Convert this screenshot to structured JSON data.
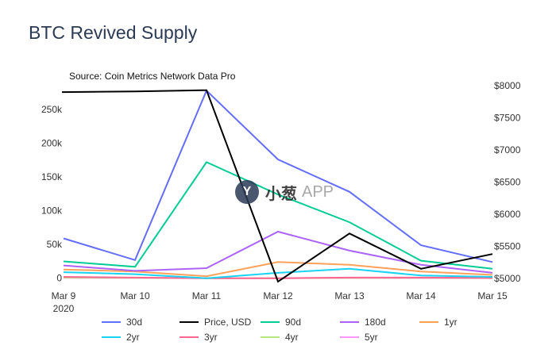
{
  "chart_data": {
    "type": "line",
    "title": "BTC Revived Supply",
    "source": "Source: Coin Metrics Network Data Pro",
    "categories": [
      "Mar 9",
      "Mar 10",
      "Mar 11",
      "Mar 12",
      "Mar 13",
      "Mar 14",
      "Mar 15"
    ],
    "x_tick_labels": [
      "Mar 9",
      "Mar 10",
      "Mar 11",
      "Mar 12",
      "Mar 13",
      "Mar 14",
      "Mar 15"
    ],
    "x_year_label": "2020",
    "y_left": {
      "ticks": [
        0,
        50000,
        100000,
        150000,
        200000,
        250000
      ],
      "tick_labels": [
        "0",
        "50k",
        "100k",
        "150k",
        "200k",
        "250k"
      ],
      "ylim": [
        -5000,
        290000
      ]
    },
    "y_right": {
      "ticks": [
        5000,
        5500,
        6000,
        6500,
        7000,
        7500,
        8000
      ],
      "tick_labels": [
        "$5000",
        "$5500",
        "$6000",
        "$6500",
        "$7000",
        "$7500",
        "$8000"
      ],
      "ylim": [
        4950,
        8050
      ]
    },
    "grid": false,
    "legend_position": "bottom",
    "series": [
      {
        "name": "30d",
        "axis": "left",
        "color": "#636efa",
        "values": [
          59000,
          27000,
          278000,
          176000,
          128000,
          49000,
          24000
        ]
      },
      {
        "name": "Price, USD",
        "axis": "right",
        "color": "#000000",
        "values": [
          7900,
          7910,
          7930,
          4950,
          5700,
          5150,
          5380
        ]
      },
      {
        "name": "90d",
        "axis": "left",
        "color": "#00cc96",
        "values": [
          25000,
          17000,
          172000,
          124000,
          83000,
          26000,
          14000
        ]
      },
      {
        "name": "180d",
        "axis": "left",
        "color": "#ab63fa",
        "values": [
          19000,
          11000,
          15000,
          69000,
          41000,
          20000,
          8000
        ]
      },
      {
        "name": "1yr",
        "axis": "left",
        "color": "#ffa15a",
        "values": [
          13000,
          10000,
          3000,
          24000,
          20000,
          10000,
          5000
        ]
      },
      {
        "name": "2yr",
        "axis": "left",
        "color": "#19d3f3",
        "values": [
          9000,
          6000,
          0,
          8000,
          14000,
          4000,
          2000
        ]
      },
      {
        "name": "3yr",
        "axis": "left",
        "color": "#ff6692",
        "values": [
          2000,
          1000,
          0,
          0,
          1000,
          1000,
          500
        ]
      },
      {
        "name": "4yr",
        "axis": "left",
        "color": "#b6e880",
        "values": [
          1000,
          500,
          0,
          0,
          500,
          500,
          300
        ]
      },
      {
        "name": "5yr",
        "axis": "left",
        "color": "#ff97ff",
        "values": [
          500,
          300,
          0,
          0,
          300,
          200,
          100
        ]
      }
    ]
  },
  "watermark": {
    "logo": "Y",
    "text": "小葱",
    "app": "APP"
  }
}
